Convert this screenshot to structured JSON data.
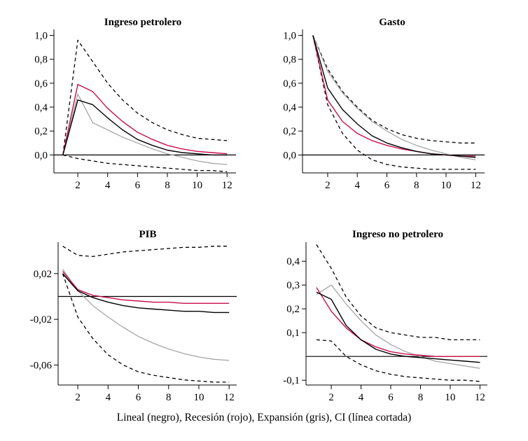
{
  "caption": "Lineal (negro), Recesión (rojo), Expansión (gris), CI (línea cortada)",
  "colors": {
    "lineal": "#000000",
    "recesion": "#c8104a",
    "expansion": "#a6a6a6",
    "ci": "#000000"
  },
  "chart_data": [
    {
      "type": "line",
      "title": "Ingreso petrolero",
      "x": [
        1,
        2,
        3,
        4,
        5,
        6,
        7,
        8,
        9,
        10,
        11,
        12
      ],
      "xticks": [
        "2",
        "4",
        "6",
        "8",
        "10",
        "12"
      ],
      "xtick_values": [
        2,
        4,
        6,
        8,
        10,
        12
      ],
      "xlim": [
        0.4,
        12.6
      ],
      "yticks": [
        "0,0",
        "0,2",
        "0,4",
        "0,6",
        "0,8",
        "1,0"
      ],
      "ytick_values": [
        0,
        0.2,
        0.4,
        0.6,
        0.8,
        1.0
      ],
      "ylim": [
        -0.15,
        1.05
      ],
      "zero_line": 0,
      "series": [
        {
          "key": "ci_upper",
          "style": "dashed",
          "values": [
            0.0,
            0.96,
            0.78,
            0.6,
            0.46,
            0.35,
            0.27,
            0.21,
            0.17,
            0.14,
            0.13,
            0.12
          ]
        },
        {
          "key": "ci_lower",
          "style": "dashed",
          "values": [
            0.0,
            -0.03,
            -0.05,
            -0.07,
            -0.08,
            -0.09,
            -0.1,
            -0.11,
            -0.12,
            -0.13,
            -0.13,
            -0.14
          ]
        },
        {
          "key": "expansion",
          "style": "gray",
          "values": [
            0.0,
            0.51,
            0.27,
            0.21,
            0.15,
            0.1,
            0.05,
            0.01,
            -0.02,
            -0.05,
            -0.07,
            -0.08
          ]
        },
        {
          "key": "recesion",
          "style": "red",
          "values": [
            0.0,
            0.59,
            0.53,
            0.39,
            0.28,
            0.19,
            0.13,
            0.08,
            0.05,
            0.03,
            0.02,
            0.01
          ]
        },
        {
          "key": "lineal",
          "style": "black",
          "values": [
            0.0,
            0.46,
            0.42,
            0.31,
            0.21,
            0.13,
            0.08,
            0.04,
            0.02,
            0.01,
            0.0,
            0.0
          ]
        }
      ]
    },
    {
      "type": "line",
      "title": "Gasto",
      "x": [
        1,
        2,
        3,
        4,
        5,
        6,
        7,
        8,
        9,
        10,
        11,
        12
      ],
      "xticks": [
        "2",
        "4",
        "6",
        "8",
        "10",
        "12"
      ],
      "xtick_values": [
        2,
        4,
        6,
        8,
        10,
        12
      ],
      "xlim": [
        0.3,
        12.6
      ],
      "yticks": [
        "0,0",
        "0,2",
        "0,4",
        "0,6",
        "0,8",
        "1,0"
      ],
      "ytick_values": [
        0,
        0.2,
        0.4,
        0.6,
        0.8,
        1.0
      ],
      "ylim": [
        -0.15,
        1.05
      ],
      "zero_line": 0,
      "series": [
        {
          "key": "ci_upper",
          "style": "dashed",
          "values": [
            1.0,
            0.72,
            0.53,
            0.4,
            0.29,
            0.22,
            0.17,
            0.14,
            0.12,
            0.11,
            0.1,
            0.1
          ]
        },
        {
          "key": "ci_lower",
          "style": "dashed",
          "values": [
            1.0,
            0.42,
            0.18,
            0.04,
            -0.04,
            -0.08,
            -0.1,
            -0.11,
            -0.12,
            -0.12,
            -0.12,
            -0.12
          ]
        },
        {
          "key": "expansion",
          "style": "gray",
          "values": [
            1.0,
            0.7,
            0.52,
            0.39,
            0.28,
            0.2,
            0.13,
            0.08,
            0.04,
            0.01,
            -0.02,
            -0.04
          ]
        },
        {
          "key": "recesion",
          "style": "red",
          "values": [
            1.0,
            0.46,
            0.28,
            0.18,
            0.12,
            0.08,
            0.05,
            0.03,
            0.01,
            0.0,
            -0.01,
            -0.01
          ]
        },
        {
          "key": "lineal",
          "style": "black",
          "values": [
            1.0,
            0.56,
            0.38,
            0.26,
            0.16,
            0.1,
            0.06,
            0.03,
            0.01,
            0.0,
            -0.01,
            -0.02
          ]
        }
      ]
    },
    {
      "type": "line",
      "title": "PIB",
      "x": [
        1,
        2,
        3,
        4,
        5,
        6,
        7,
        8,
        9,
        10,
        11,
        12
      ],
      "xticks": [
        "2",
        "4",
        "6",
        "8",
        "10",
        "12"
      ],
      "xtick_values": [
        2,
        4,
        6,
        8,
        10,
        12
      ],
      "xlim": [
        0.7,
        12.5
      ],
      "yticks": [
        "-0,06",
        "-0,02",
        "0,02"
      ],
      "ytick_values": [
        -0.06,
        -0.02,
        0.02
      ],
      "ylim": [
        -0.0775,
        0.0475
      ],
      "zero_line": 0,
      "series": [
        {
          "key": "ci_upper",
          "style": "dashed",
          "values": [
            0.044,
            0.036,
            0.035,
            0.037,
            0.039,
            0.04,
            0.041,
            0.042,
            0.043,
            0.043,
            0.044,
            0.044
          ]
        },
        {
          "key": "ci_lower",
          "style": "dashed",
          "values": [
            0.02,
            -0.018,
            -0.037,
            -0.051,
            -0.06,
            -0.066,
            -0.069,
            -0.071,
            -0.073,
            -0.074,
            -0.075,
            -0.075
          ]
        },
        {
          "key": "expansion",
          "style": "gray",
          "values": [
            0.024,
            0.005,
            -0.008,
            -0.018,
            -0.027,
            -0.035,
            -0.041,
            -0.046,
            -0.05,
            -0.053,
            -0.055,
            -0.056
          ]
        },
        {
          "key": "recesion",
          "style": "red",
          "values": [
            0.022,
            0.006,
            0.001,
            -0.001,
            -0.003,
            -0.004,
            -0.005,
            -0.005,
            -0.006,
            -0.006,
            -0.006,
            -0.006
          ]
        },
        {
          "key": "lineal",
          "style": "black",
          "values": [
            0.02,
            0.005,
            -0.001,
            -0.005,
            -0.008,
            -0.01,
            -0.011,
            -0.012,
            -0.013,
            -0.013,
            -0.014,
            -0.014
          ]
        }
      ]
    },
    {
      "type": "line",
      "title": "Ingreso no petrolero",
      "x": [
        1,
        2,
        3,
        4,
        5,
        6,
        7,
        8,
        9,
        10,
        11,
        12
      ],
      "xticks": [
        "2",
        "4",
        "6",
        "8",
        "10",
        "12"
      ],
      "xtick_values": [
        2,
        4,
        6,
        8,
        10,
        12
      ],
      "xlim": [
        0.3,
        12.5
      ],
      "yticks": [
        "-0,1",
        "0,1",
        "0,2",
        "0,3",
        "0,4"
      ],
      "ytick_values": [
        -0.1,
        0.1,
        0.2,
        0.3,
        0.4
      ],
      "ylim": [
        -0.12,
        0.48
      ],
      "zero_line": 0,
      "series": [
        {
          "key": "ci_upper",
          "style": "dashed",
          "values": [
            0.47,
            0.37,
            0.25,
            0.17,
            0.12,
            0.1,
            0.09,
            0.08,
            0.08,
            0.07,
            0.07,
            0.07
          ]
        },
        {
          "key": "ci_lower",
          "style": "dashed",
          "values": [
            0.07,
            0.065,
            0.0,
            -0.035,
            -0.06,
            -0.075,
            -0.085,
            -0.09,
            -0.095,
            -0.1,
            -0.1,
            -0.105
          ]
        },
        {
          "key": "expansion",
          "style": "gray",
          "values": [
            0.26,
            0.3,
            0.22,
            0.15,
            0.09,
            0.05,
            0.02,
            0.0,
            -0.02,
            -0.03,
            -0.04,
            -0.05
          ]
        },
        {
          "key": "recesion",
          "style": "red",
          "values": [
            0.29,
            0.19,
            0.12,
            0.07,
            0.04,
            0.02,
            0.01,
            0.005,
            0.0,
            0.0,
            0.0,
            0.0
          ]
        },
        {
          "key": "lineal",
          "style": "black",
          "values": [
            0.27,
            0.24,
            0.13,
            0.07,
            0.03,
            0.01,
            0.0,
            -0.005,
            -0.01,
            -0.015,
            -0.02,
            -0.025
          ]
        }
      ]
    }
  ]
}
